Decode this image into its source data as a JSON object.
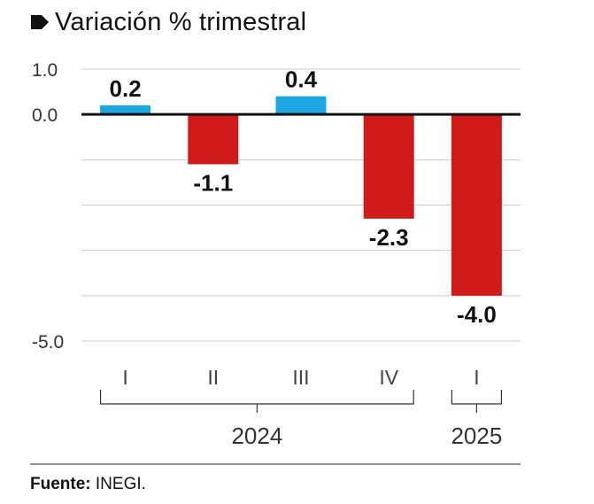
{
  "title": "Variación % trimestral",
  "icon": "tag-icon",
  "source_label": "Fuente:",
  "source_value": "INEGI.",
  "colors": {
    "positive": "#1aa7e1",
    "negative": "#d11a1a",
    "grid": "#cccccc",
    "zero": "#111111"
  },
  "chart_data": {
    "type": "bar",
    "title": "Variación % trimestral",
    "categories": [
      "I",
      "II",
      "III",
      "IV",
      "I"
    ],
    "groups": [
      {
        "label": "2024",
        "categories": [
          "I",
          "II",
          "III",
          "IV"
        ]
      },
      {
        "label": "2025",
        "categories": [
          "I"
        ]
      }
    ],
    "values": [
      0.2,
      -1.1,
      0.4,
      -2.3,
      -4.0
    ],
    "value_labels": [
      "0.2",
      "-1.1",
      "0.4",
      "-2.3",
      "-4.0"
    ],
    "ylim": [
      -5.0,
      1.0
    ],
    "yticks": [
      1.0,
      0.0,
      -1.0,
      -2.0,
      -3.0,
      -4.0,
      -5.0
    ],
    "ytick_labels": [
      "1.0",
      "0.0",
      "",
      "",
      "",
      "",
      "-5.0"
    ],
    "grid": true,
    "xlabel": "",
    "ylabel": ""
  }
}
